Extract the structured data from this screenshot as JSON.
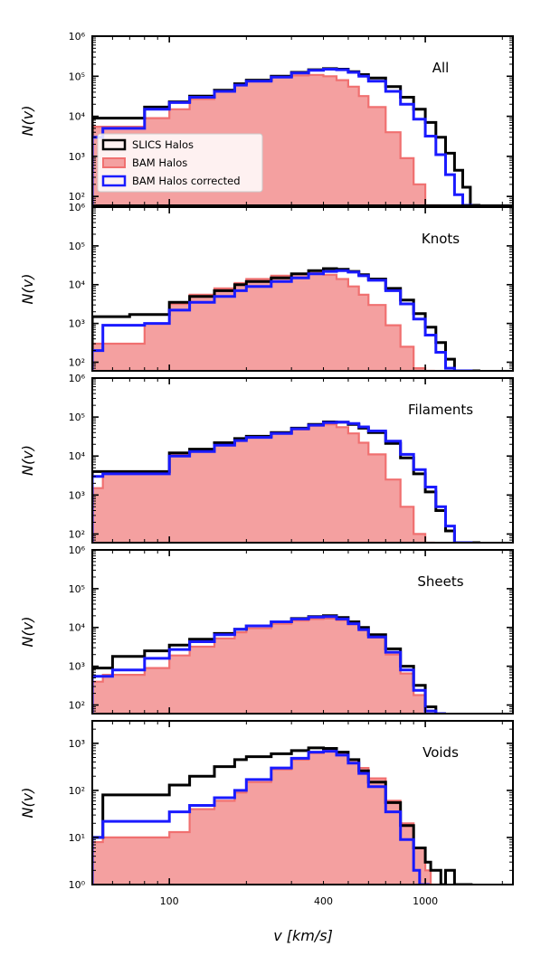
{
  "chart_data": {
    "type": "histogram-step-grid",
    "xlabel": "v [km/s]",
    "ylabel": "N(v)",
    "x_scale": "log",
    "y_scale": "log",
    "xlim": [
      50,
      2200
    ],
    "x_ticks": [
      100,
      400,
      1000
    ],
    "x_tick_labels": [
      "100",
      "400",
      "1000"
    ],
    "legend": {
      "placement": "lower-left of first panel",
      "entries": [
        "SLICS Halos",
        "BAM Halos",
        "BAM Halos corrected"
      ]
    },
    "series_styles": {
      "SLICS Halos": {
        "color": "#000000",
        "style": "step"
      },
      "BAM Halos": {
        "color": "#f4a0a0",
        "edge": "#f07070",
        "style": "filled-step"
      },
      "BAM Halos corrected": {
        "color": "#1a1aff",
        "style": "step"
      }
    },
    "panels": [
      {
        "label": "All",
        "ylim": [
          60,
          1000000
        ],
        "y_ticks": [
          100,
          1000,
          10000,
          100000,
          1000000
        ],
        "y_tick_labels": [
          "10²",
          "10³",
          "10⁴",
          "10⁵",
          "10⁶"
        ],
        "series": {
          "SLICS Halos": {
            "x": [
              50,
              80,
              100,
              120,
              150,
              180,
              200,
              250,
              300,
              350,
              400,
              450,
              500,
              550,
              600,
              700,
              800,
              900,
              1000,
              1100,
              1200,
              1300,
              1400,
              1500
            ],
            "y": [
              9000,
              17000,
              23000,
              32000,
              45000,
              65000,
              80000,
              100000,
              125000,
              145000,
              155000,
              150000,
              130000,
              110000,
              90000,
              55000,
              30000,
              15000,
              7000,
              3000,
              1200,
              450,
              170,
              60
            ]
          },
          "BAM Halos": {
            "x": [
              50,
              80,
              100,
              120,
              150,
              180,
              200,
              250,
              300,
              350,
              400,
              450,
              500,
              550,
              600,
              700,
              800,
              900,
              1000,
              1050
            ],
            "y": [
              5500,
              9000,
              15000,
              27000,
              45000,
              65000,
              78000,
              95000,
              105000,
              108000,
              100000,
              80000,
              55000,
              32000,
              17000,
              4000,
              900,
              200,
              60,
              60
            ]
          },
          "BAM Halos corrected": {
            "x": [
              50,
              55,
              80,
              100,
              120,
              150,
              180,
              200,
              250,
              300,
              350,
              400,
              450,
              500,
              550,
              600,
              700,
              800,
              900,
              1000,
              1100,
              1200,
              1300,
              1400
            ],
            "y": [
              3000,
              5000,
              15000,
              22000,
              30000,
              42000,
              60000,
              75000,
              95000,
              120000,
              140000,
              150000,
              145000,
              125000,
              100000,
              75000,
              42000,
              20000,
              8500,
              3200,
              1100,
              350,
              110,
              60
            ]
          }
        }
      },
      {
        "label": "Knots",
        "ylim": [
          60,
          1000000
        ],
        "y_ticks": [
          100,
          1000,
          10000,
          100000,
          1000000
        ],
        "y_tick_labels": [
          "10²",
          "10³",
          "10⁴",
          "10⁵",
          "10⁶"
        ],
        "series": {
          "SLICS Halos": {
            "x": [
              50,
              70,
              100,
              120,
              150,
              180,
              200,
              250,
              300,
              350,
              400,
              450,
              500,
              550,
              600,
              700,
              800,
              900,
              1000,
              1100,
              1200,
              1300,
              1400,
              1500
            ],
            "y": [
              1500,
              1700,
              3500,
              5000,
              7000,
              10000,
              12000,
              15000,
              19000,
              23000,
              26000,
              25000,
              22000,
              18000,
              14000,
              8000,
              4000,
              1800,
              800,
              320,
              120,
              60,
              60,
              60
            ]
          },
          "BAM Halos": {
            "x": [
              50,
              80,
              100,
              120,
              150,
              180,
              200,
              250,
              300,
              350,
              400,
              450,
              500,
              550,
              600,
              700,
              800,
              900,
              1000
            ],
            "y": [
              300,
              1000,
              3200,
              5500,
              8000,
              11000,
              14000,
              17000,
              19000,
              20000,
              18000,
              14000,
              9000,
              5500,
              3000,
              900,
              250,
              70,
              60
            ]
          },
          "BAM Halos corrected": {
            "x": [
              50,
              55,
              80,
              100,
              120,
              150,
              180,
              200,
              250,
              300,
              350,
              400,
              450,
              500,
              550,
              600,
              700,
              800,
              900,
              1000,
              1100,
              1200,
              1300,
              1400
            ],
            "y": [
              200,
              900,
              1000,
              2200,
              3500,
              5000,
              7000,
              9000,
              12000,
              15000,
              19000,
              22000,
              23000,
              21000,
              17000,
              13000,
              7000,
              3200,
              1300,
              500,
              180,
              70,
              60,
              60
            ]
          }
        }
      },
      {
        "label": "Filaments",
        "ylim": [
          60,
          1000000
        ],
        "y_ticks": [
          100,
          1000,
          10000,
          100000,
          1000000
        ],
        "y_tick_labels": [
          "10²",
          "10³",
          "10⁴",
          "10⁵",
          "10⁶"
        ],
        "series": {
          "SLICS Halos": {
            "x": [
              50,
              80,
              100,
              120,
              150,
              180,
              200,
              250,
              300,
              350,
              400,
              450,
              500,
              550,
              600,
              700,
              800,
              900,
              1000,
              1100,
              1200,
              1300,
              1400,
              1500
            ],
            "y": [
              4000,
              4000,
              12000,
              15000,
              22000,
              28000,
              32000,
              40000,
              52000,
              65000,
              75000,
              74000,
              65000,
              52000,
              40000,
              21000,
              9000,
              3500,
              1200,
              400,
              120,
              60,
              60,
              60
            ]
          },
          "BAM Halos": {
            "x": [
              50,
              55,
              80,
              100,
              120,
              150,
              180,
              200,
              250,
              300,
              350,
              400,
              450,
              500,
              550,
              600,
              700,
              800,
              900,
              1000
            ],
            "y": [
              1500,
              3500,
              3500,
              11000,
              14000,
              20000,
              26000,
              30000,
              38000,
              48000,
              60000,
              65000,
              55000,
              38000,
              22000,
              11000,
              2500,
              500,
              100,
              60
            ]
          },
          "BAM Halos corrected": {
            "x": [
              50,
              55,
              80,
              100,
              120,
              150,
              180,
              200,
              250,
              300,
              350,
              400,
              450,
              500,
              550,
              600,
              700,
              800,
              900,
              1000,
              1100,
              1200,
              1300,
              1400
            ],
            "y": [
              3000,
              3500,
              3500,
              10000,
              13000,
              19000,
              25000,
              30000,
              38000,
              50000,
              62000,
              72000,
              74000,
              68000,
              56000,
              44000,
              24000,
              11000,
              4500,
              1600,
              500,
              160,
              60,
              60
            ]
          }
        }
      },
      {
        "label": "Sheets",
        "ylim": [
          60,
          1000000
        ],
        "y_ticks": [
          100,
          1000,
          10000,
          100000,
          1000000
        ],
        "y_tick_labels": [
          "10²",
          "10³",
          "10⁴",
          "10⁵",
          "10⁶"
        ],
        "series": {
          "SLICS Halos": {
            "x": [
              50,
              60,
              80,
              100,
              120,
              150,
              180,
              200,
              250,
              300,
              350,
              400,
              450,
              500,
              550,
              600,
              700,
              800,
              900,
              1000,
              1100
            ],
            "y": [
              900,
              1800,
              2500,
              3500,
              5000,
              7000,
              9000,
              11000,
              14000,
              17000,
              19000,
              20000,
              18000,
              14000,
              10000,
              6500,
              2800,
              1000,
              320,
              90,
              60
            ]
          },
          "BAM Halos": {
            "x": [
              50,
              55,
              80,
              100,
              120,
              150,
              180,
              200,
              250,
              300,
              350,
              400,
              450,
              500,
              550,
              600,
              700,
              800,
              900,
              1000,
              1050
            ],
            "y": [
              400,
              600,
              900,
              1900,
              3200,
              5200,
              7500,
              9500,
              12500,
              15000,
              16500,
              17000,
              15500,
              12000,
              8500,
              5500,
              2000,
              650,
              180,
              60,
              60
            ]
          },
          "BAM Halos corrected": {
            "x": [
              50,
              60,
              80,
              100,
              120,
              150,
              180,
              200,
              250,
              300,
              350,
              400,
              450,
              500,
              550,
              600,
              700,
              800,
              900,
              1000,
              1100
            ],
            "y": [
              550,
              800,
              1600,
              2700,
              4300,
              6500,
              9000,
              11000,
              14000,
              16500,
              18500,
              19000,
              16500,
              12500,
              8800,
              5700,
              2300,
              800,
              240,
              70,
              60
            ]
          }
        }
      },
      {
        "label": "Voids",
        "ylim": [
          1,
          3000
        ],
        "y_ticks": [
          1,
          10,
          100,
          1000
        ],
        "y_tick_labels": [
          "10⁰",
          "10¹",
          "10²",
          "10³"
        ],
        "series": {
          "SLICS Halos": {
            "x": [
              50,
              55,
              80,
              100,
              120,
              150,
              180,
              200,
              250,
              300,
              350,
              400,
              450,
              500,
              550,
              600,
              700,
              800,
              900,
              1000,
              1050,
              1100,
              1150,
              1200,
              1300,
              1400
            ],
            "y": [
              10,
              80,
              80,
              130,
              200,
              320,
              450,
              520,
              600,
              700,
              800,
              780,
              650,
              450,
              260,
              150,
              55,
              18,
              6,
              3,
              2,
              2,
              1,
              2,
              1,
              1
            ]
          },
          "BAM Halos": {
            "x": [
              50,
              55,
              80,
              100,
              120,
              150,
              180,
              200,
              250,
              300,
              350,
              400,
              450,
              500,
              550,
              600,
              700,
              800,
              900,
              1000,
              1050
            ],
            "y": [
              8,
              10,
              10,
              13,
              40,
              60,
              90,
              150,
              280,
              450,
              620,
              700,
              620,
              450,
              300,
              180,
              60,
              20,
              6,
              2,
              1
            ]
          },
          "BAM Halos corrected": {
            "x": [
              50,
              55,
              80,
              100,
              120,
              150,
              180,
              200,
              250,
              300,
              350,
              400,
              450,
              500,
              550,
              600,
              700,
              800,
              900,
              950
            ],
            "y": [
              10,
              22,
              22,
              35,
              48,
              70,
              100,
              170,
              300,
              480,
              650,
              680,
              560,
              380,
              230,
              120,
              35,
              9,
              2,
              1
            ]
          }
        }
      }
    ]
  }
}
